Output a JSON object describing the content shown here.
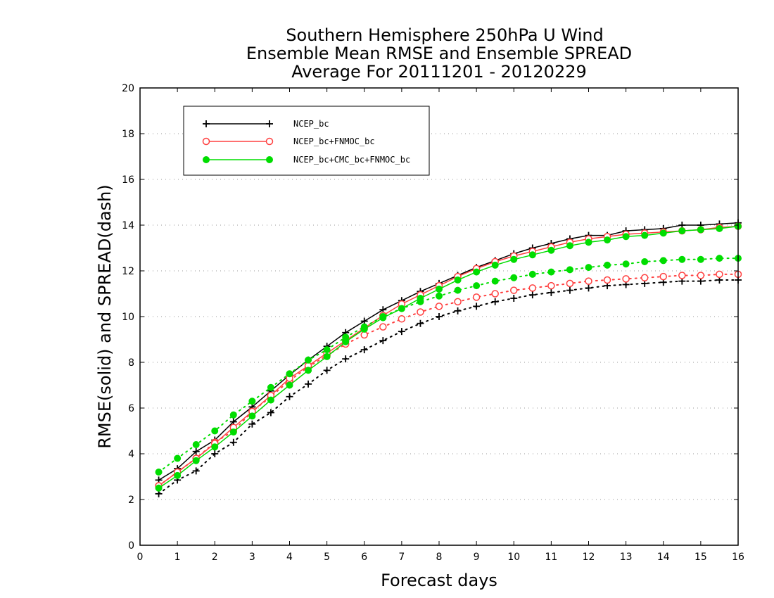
{
  "chart_data": {
    "type": "line",
    "title_lines": [
      "Southern Hemisphere 250hPa U Wind",
      "Ensemble Mean RMSE and Ensemble SPREAD",
      "Average For 20111201 - 20120229"
    ],
    "xlabel": "Forecast days",
    "ylabel": "RMSE(solid) and SPREAD(dash)",
    "xlim": [
      0,
      16
    ],
    "ylim": [
      0,
      20
    ],
    "xticks": [
      0,
      1,
      2,
      3,
      4,
      5,
      6,
      7,
      8,
      9,
      10,
      11,
      12,
      13,
      14,
      15,
      16
    ],
    "yticks": [
      0,
      2,
      4,
      6,
      8,
      10,
      12,
      14,
      16,
      18,
      20
    ],
    "grid": "horizontal-dotted",
    "legend_position": "top-left",
    "x": [
      0.5,
      1,
      1.5,
      2,
      2.5,
      3,
      3.5,
      4,
      4.5,
      5,
      5.5,
      6,
      6.5,
      7,
      7.5,
      8,
      8.5,
      9,
      9.5,
      10,
      10.5,
      11,
      11.5,
      12,
      12.5,
      13,
      13.5,
      14,
      14.5,
      15,
      15.5,
      16
    ],
    "series": [
      {
        "name": "NCEP_bc",
        "color": "#000000",
        "marker": "plus",
        "rmse": [
          2.85,
          3.35,
          4.1,
          4.6,
          5.4,
          6.05,
          6.75,
          7.45,
          8.1,
          8.7,
          9.3,
          9.8,
          10.3,
          10.7,
          11.1,
          11.45,
          11.8,
          12.15,
          12.45,
          12.75,
          13.0,
          13.2,
          13.4,
          13.55,
          13.55,
          13.75,
          13.8,
          13.85,
          14.0,
          14.0,
          14.05,
          14.1
        ],
        "spread": [
          2.25,
          2.85,
          3.25,
          4.0,
          4.5,
          5.3,
          5.8,
          6.5,
          7.05,
          7.65,
          8.15,
          8.55,
          8.95,
          9.35,
          9.7,
          10.0,
          10.25,
          10.45,
          10.65,
          10.8,
          10.95,
          11.05,
          11.15,
          11.25,
          11.35,
          11.4,
          11.45,
          11.5,
          11.55,
          11.55,
          11.6,
          11.6
        ]
      },
      {
        "name": "NCEP_bc+FNMOC_bc",
        "color": "#ff4040",
        "marker": "open-circle",
        "rmse": [
          2.6,
          3.2,
          3.8,
          4.45,
          5.15,
          5.85,
          6.55,
          7.3,
          7.85,
          8.4,
          8.95,
          9.5,
          10.05,
          10.55,
          10.95,
          11.35,
          11.75,
          12.1,
          12.4,
          12.65,
          12.85,
          13.05,
          13.25,
          13.4,
          13.5,
          13.6,
          13.65,
          13.7,
          13.75,
          13.8,
          13.9,
          13.95
        ],
        "spread": [
          2.6,
          3.2,
          3.8,
          4.5,
          5.0,
          5.85,
          6.5,
          7.2,
          7.8,
          8.3,
          8.8,
          9.2,
          9.55,
          9.9,
          10.2,
          10.45,
          10.65,
          10.85,
          11.0,
          11.15,
          11.25,
          11.35,
          11.45,
          11.55,
          11.6,
          11.65,
          11.7,
          11.75,
          11.8,
          11.8,
          11.85,
          11.85
        ]
      },
      {
        "name": "NCEP_bc+CMC_bc+FNMOC_bc",
        "color": "#00dd00",
        "marker": "filled-circle",
        "rmse": [
          2.5,
          3.05,
          3.7,
          4.3,
          4.95,
          5.65,
          6.35,
          7.0,
          7.65,
          8.25,
          8.9,
          9.45,
          9.95,
          10.35,
          10.8,
          11.2,
          11.6,
          11.95,
          12.25,
          12.5,
          12.7,
          12.9,
          13.1,
          13.25,
          13.35,
          13.5,
          13.55,
          13.65,
          13.75,
          13.8,
          13.85,
          13.95
        ],
        "spread": [
          3.2,
          3.8,
          4.4,
          5.0,
          5.7,
          6.3,
          6.9,
          7.5,
          8.1,
          8.55,
          9.1,
          9.55,
          10.0,
          10.35,
          10.65,
          10.9,
          11.15,
          11.35,
          11.55,
          11.7,
          11.85,
          11.95,
          12.05,
          12.15,
          12.25,
          12.3,
          12.4,
          12.45,
          12.5,
          12.5,
          12.55,
          12.55
        ]
      }
    ]
  }
}
